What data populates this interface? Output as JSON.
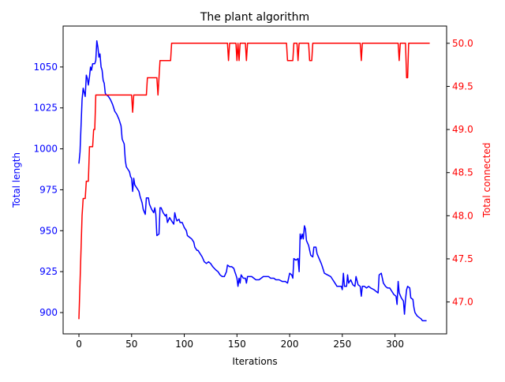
{
  "chart_data": {
    "type": "line",
    "title": "The plant algorithm",
    "xlabel": "Iterations",
    "ylabel": "Total length",
    "y2label": "Total connected",
    "xlim": [
      -15,
      349
    ],
    "ylim": [
      887,
      1075
    ],
    "y2lim": [
      46.63,
      50.2
    ],
    "xticks": [
      0,
      50,
      100,
      150,
      200,
      250,
      300
    ],
    "xtick_labels": [
      "0",
      "50",
      "100",
      "150",
      "200",
      "250",
      "300"
    ],
    "yticks": [
      900,
      925,
      950,
      975,
      1000,
      1025,
      1050
    ],
    "ytick_labels": [
      "900",
      "925",
      "950",
      "975",
      "1000",
      "1025",
      "1050"
    ],
    "y2ticks": [
      47.0,
      47.5,
      48.0,
      48.5,
      49.0,
      49.5,
      50.0
    ],
    "y2tick_labels": [
      "47.0",
      "47.5",
      "48.0",
      "48.5",
      "49.0",
      "49.5",
      "50.0"
    ],
    "grid": false,
    "colors": {
      "left_series": "#0000ff",
      "right_series": "#ff0000",
      "axes": "#000000"
    },
    "series": [
      {
        "axis": "left",
        "points": [
          [
            0,
            991
          ],
          [
            1,
            998
          ],
          [
            3,
            1030
          ],
          [
            4,
            1037
          ],
          [
            6,
            1032
          ],
          [
            7,
            1045
          ],
          [
            8,
            1043
          ],
          [
            9,
            1039
          ],
          [
            10,
            1044
          ],
          [
            11,
            1050
          ],
          [
            12,
            1048
          ],
          [
            13,
            1052
          ],
          [
            15,
            1052
          ],
          [
            16,
            1054
          ],
          [
            17,
            1066
          ],
          [
            18,
            1062
          ],
          [
            19,
            1056
          ],
          [
            20,
            1058
          ],
          [
            21,
            1050
          ],
          [
            22,
            1048
          ],
          [
            23,
            1042
          ],
          [
            24,
            1040
          ],
          [
            25,
            1034
          ],
          [
            26,
            1033
          ],
          [
            28,
            1032
          ],
          [
            30,
            1030
          ],
          [
            32,
            1027
          ],
          [
            34,
            1023
          ],
          [
            36,
            1021
          ],
          [
            38,
            1018
          ],
          [
            40,
            1014
          ],
          [
            41,
            1006
          ],
          [
            43,
            1003
          ],
          [
            44,
            993
          ],
          [
            45,
            989
          ],
          [
            47,
            987
          ],
          [
            48,
            986
          ],
          [
            49,
            983
          ],
          [
            50,
            982
          ],
          [
            51,
            974
          ],
          [
            52,
            982
          ],
          [
            53,
            978
          ],
          [
            55,
            976
          ],
          [
            57,
            974
          ],
          [
            58,
            971
          ],
          [
            60,
            967
          ],
          [
            61,
            963
          ],
          [
            63,
            960
          ],
          [
            64,
            970
          ],
          [
            66,
            970
          ],
          [
            67,
            966
          ],
          [
            69,
            963
          ],
          [
            71,
            961
          ],
          [
            72,
            964
          ],
          [
            73,
            960
          ],
          [
            74,
            947
          ],
          [
            76,
            948
          ],
          [
            77,
            964
          ],
          [
            78,
            964
          ],
          [
            80,
            961
          ],
          [
            82,
            959
          ],
          [
            83,
            960
          ],
          [
            84,
            955
          ],
          [
            86,
            958
          ],
          [
            88,
            956
          ],
          [
            90,
            954
          ],
          [
            91,
            961
          ],
          [
            92,
            958
          ],
          [
            93,
            956
          ],
          [
            95,
            957
          ],
          [
            96,
            955
          ],
          [
            98,
            955
          ],
          [
            100,
            952
          ],
          [
            102,
            950
          ],
          [
            103,
            947
          ],
          [
            105,
            946
          ],
          [
            107,
            945
          ],
          [
            109,
            943
          ],
          [
            110,
            940
          ],
          [
            112,
            938
          ],
          [
            113,
            938
          ],
          [
            115,
            936
          ],
          [
            117,
            934
          ],
          [
            119,
            931
          ],
          [
            121,
            930
          ],
          [
            123,
            931
          ],
          [
            125,
            930
          ],
          [
            127,
            928
          ],
          [
            130,
            926
          ],
          [
            132,
            925
          ],
          [
            134,
            923
          ],
          [
            136,
            922
          ],
          [
            138,
            922
          ],
          [
            140,
            925
          ],
          [
            141,
            929
          ],
          [
            143,
            928
          ],
          [
            145,
            928
          ],
          [
            147,
            927
          ],
          [
            148,
            925
          ],
          [
            149,
            923
          ],
          [
            150,
            921
          ],
          [
            151,
            916
          ],
          [
            152,
            921
          ],
          [
            153,
            918
          ],
          [
            154,
            923
          ],
          [
            156,
            921
          ],
          [
            158,
            921
          ],
          [
            159,
            918
          ],
          [
            160,
            922
          ],
          [
            162,
            922
          ],
          [
            164,
            922
          ],
          [
            166,
            921
          ],
          [
            168,
            920
          ],
          [
            171,
            920
          ],
          [
            173,
            921
          ],
          [
            175,
            922
          ],
          [
            177,
            922
          ],
          [
            180,
            922
          ],
          [
            182,
            921
          ],
          [
            185,
            921
          ],
          [
            187,
            920
          ],
          [
            190,
            920
          ],
          [
            193,
            919
          ],
          [
            196,
            919
          ],
          [
            198,
            918
          ],
          [
            200,
            924
          ],
          [
            202,
            923
          ],
          [
            203,
            921
          ],
          [
            204,
            933
          ],
          [
            206,
            932
          ],
          [
            208,
            933
          ],
          [
            209,
            925
          ],
          [
            210,
            948
          ],
          [
            211,
            945
          ],
          [
            212,
            948
          ],
          [
            213,
            945
          ],
          [
            214,
            953
          ],
          [
            215,
            951
          ],
          [
            216,
            944
          ],
          [
            218,
            941
          ],
          [
            220,
            935
          ],
          [
            222,
            934
          ],
          [
            223,
            940
          ],
          [
            225,
            940
          ],
          [
            226,
            936
          ],
          [
            228,
            933
          ],
          [
            230,
            930
          ],
          [
            231,
            928
          ],
          [
            233,
            924
          ],
          [
            236,
            923
          ],
          [
            239,
            922
          ],
          [
            241,
            920
          ],
          [
            243,
            918
          ],
          [
            245,
            916
          ],
          [
            247,
            916
          ],
          [
            249,
            916
          ],
          [
            250,
            914
          ],
          [
            251,
            924
          ],
          [
            252,
            916
          ],
          [
            254,
            916
          ],
          [
            255,
            923
          ],
          [
            256,
            918
          ],
          [
            258,
            920
          ],
          [
            260,
            917
          ],
          [
            262,
            916
          ],
          [
            263,
            922
          ],
          [
            265,
            917
          ],
          [
            267,
            916
          ],
          [
            268,
            910
          ],
          [
            269,
            916
          ],
          [
            271,
            916
          ],
          [
            273,
            915
          ],
          [
            275,
            916
          ],
          [
            277,
            915
          ],
          [
            280,
            914
          ],
          [
            282,
            913
          ],
          [
            284,
            912
          ],
          [
            285,
            923
          ],
          [
            287,
            924
          ],
          [
            289,
            918
          ],
          [
            291,
            916
          ],
          [
            293,
            915
          ],
          [
            295,
            915
          ],
          [
            297,
            913
          ],
          [
            299,
            911
          ],
          [
            301,
            910
          ],
          [
            302,
            905
          ],
          [
            303,
            919
          ],
          [
            304,
            912
          ],
          [
            306,
            909
          ],
          [
            308,
            907
          ],
          [
            309,
            899
          ],
          [
            310,
            908
          ],
          [
            311,
            914
          ],
          [
            312,
            916
          ],
          [
            314,
            915
          ],
          [
            315,
            909
          ],
          [
            317,
            908
          ],
          [
            318,
            903
          ],
          [
            319,
            900
          ],
          [
            321,
            898
          ],
          [
            323,
            897
          ],
          [
            325,
            896
          ],
          [
            326,
            895
          ],
          [
            328,
            895
          ],
          [
            330,
            895
          ]
        ]
      },
      {
        "axis": "right",
        "points": [
          [
            0,
            46.8
          ],
          [
            3,
            48.0
          ],
          [
            4,
            48.2
          ],
          [
            6,
            48.2
          ],
          [
            7,
            48.4
          ],
          [
            9,
            48.4
          ],
          [
            10,
            48.8
          ],
          [
            13,
            48.8
          ],
          [
            14,
            49.0
          ],
          [
            15,
            49.0
          ],
          [
            16,
            49.4
          ],
          [
            35,
            49.4
          ],
          [
            50,
            49.4
          ],
          [
            51,
            49.2
          ],
          [
            52,
            49.4
          ],
          [
            64,
            49.4
          ],
          [
            65,
            49.6
          ],
          [
            74,
            49.6
          ],
          [
            75,
            49.4
          ],
          [
            76,
            49.6
          ],
          [
            77,
            49.8
          ],
          [
            87,
            49.8
          ],
          [
            88,
            50.0
          ],
          [
            141,
            50.0
          ],
          [
            142,
            49.8
          ],
          [
            143,
            50.0
          ],
          [
            149,
            50.0
          ],
          [
            150,
            49.8
          ],
          [
            151,
            50.0
          ],
          [
            152,
            49.8
          ],
          [
            153,
            50.0
          ],
          [
            158,
            50.0
          ],
          [
            159,
            49.8
          ],
          [
            160,
            50.0
          ],
          [
            197,
            50.0
          ],
          [
            198,
            49.8
          ],
          [
            203,
            49.8
          ],
          [
            204,
            50.0
          ],
          [
            207,
            50.0
          ],
          [
            208,
            49.8
          ],
          [
            209,
            50.0
          ],
          [
            218,
            50.0
          ],
          [
            219,
            49.8
          ],
          [
            221,
            49.8
          ],
          [
            222,
            50.0
          ],
          [
            267,
            50.0
          ],
          [
            268,
            49.8
          ],
          [
            269,
            50.0
          ],
          [
            303,
            50.0
          ],
          [
            304,
            49.8
          ],
          [
            305,
            50.0
          ],
          [
            310,
            50.0
          ],
          [
            311,
            49.6
          ],
          [
            312,
            49.6
          ],
          [
            313,
            50.0
          ],
          [
            333,
            50.0
          ]
        ]
      }
    ]
  }
}
